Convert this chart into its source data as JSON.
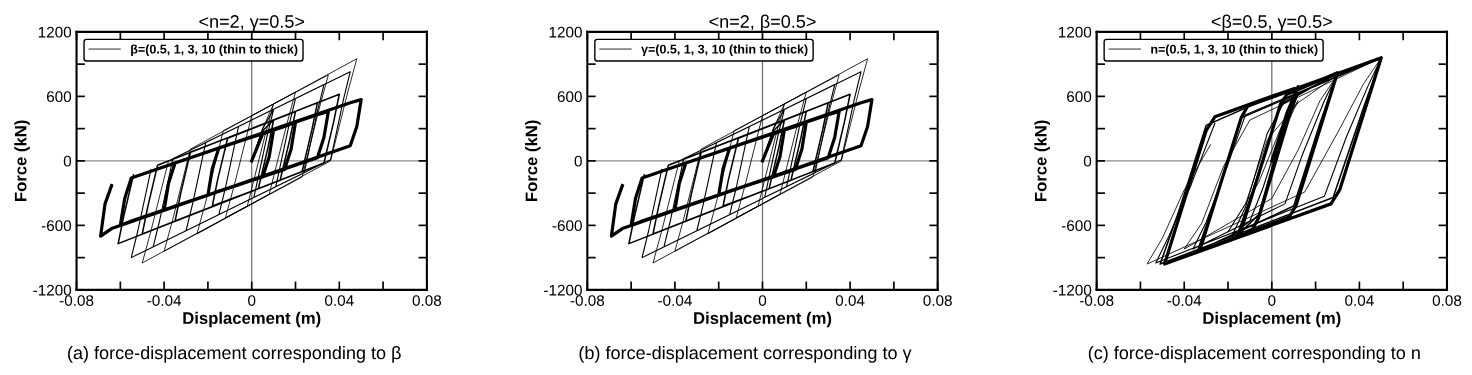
{
  "chart_data": [
    {
      "type": "line",
      "title": "<n=2, γ=0.5>",
      "xlabel": "Displacement (m)",
      "ylabel": "Force (kN)",
      "annotations": [
        "(a) force-displacement corresponding to β"
      ],
      "legend": "top left",
      "grid": false,
      "xlim": [
        -0.08,
        0.08
      ],
      "xticks": [
        -0.08,
        {
          "value": -0.06,
          "label": null
        },
        -0.04,
        {
          "value": -0.02,
          "label": null
        },
        0,
        {
          "value": 0.02,
          "label": null
        },
        0.04,
        {
          "value": 0.06,
          "label": null
        },
        0.08
      ],
      "ylim": [
        -1200,
        1200
      ],
      "yticks": [
        -1200,
        {
          "value": -900,
          "label": null
        },
        -600,
        {
          "value": -300,
          "label": null
        },
        0,
        {
          "value": 300,
          "label": null
        },
        600,
        {
          "value": 900,
          "label": null
        },
        1200
      ],
      "ref_lines": [
        {
          "axis": "x",
          "value": 0,
          "color": "#707070"
        },
        {
          "axis": "y",
          "value": 0,
          "color": "#8c8c8c"
        }
      ],
      "series": [
        {
          "name": "β=(0.5, 1, 3, 10 (thin to thick)",
          "color": "#000000",
          "x": [
            0,
            0.005,
            0.01,
            0.006,
            -0.002,
            -0.012,
            -0.008,
            0,
            0.02,
            0.016,
            0.008,
            -0.025,
            -0.021,
            -0.013,
            0.035,
            0.031,
            0.023,
            -0.04,
            -0.036,
            -0.028,
            0.048,
            0.044,
            0.036,
            -0.05,
            -0.046,
            -0.038
          ],
          "values": [
            0,
            300,
            530,
            230,
            -420,
            -530,
            -230,
            420,
            640,
            340,
            -310,
            -680,
            -380,
            280,
            800,
            500,
            -150,
            -840,
            -540,
            110,
            950,
            650,
            0,
            -950,
            -650,
            0
          ]
        },
        {
          "color": "#000000",
          "x": [
            0,
            0.005,
            0.01,
            0.007,
            0.001,
            -0.015,
            -0.012,
            -0.006,
            0.02,
            0.017,
            0.011,
            -0.03,
            -0.027,
            -0.021,
            0.033,
            0.03,
            0.024,
            -0.045,
            -0.042,
            -0.036,
            0.045,
            0.042,
            0.036,
            -0.055,
            -0.052,
            -0.046
          ],
          "values": [
            0,
            300,
            480,
            230,
            -340,
            -500,
            -250,
            320,
            580,
            330,
            -240,
            -650,
            -400,
            170,
            710,
            460,
            -110,
            -800,
            -550,
            20,
            830,
            580,
            10,
            -900,
            -650,
            -80
          ]
        },
        {
          "color": "#000000",
          "x": [
            0,
            0.005,
            0.01,
            0.0075,
            0.003,
            -0.018,
            -0.0155,
            -0.011,
            0.02,
            0.0175,
            0.013,
            -0.035,
            -0.0325,
            -0.028,
            0.03,
            0.0275,
            0.023,
            -0.05,
            -0.0475,
            -0.043,
            0.04,
            0.0375,
            0.033,
            -0.061,
            -0.0585,
            -0.054
          ],
          "values": [
            0,
            280,
            380,
            130,
            -260,
            -420,
            -170,
            210,
            460,
            210,
            -180,
            -560,
            -310,
            80,
            540,
            290,
            -100,
            -680,
            -430,
            -40,
            620,
            370,
            -20,
            -770,
            -520,
            -130
          ]
        },
        {
          "color": "#000000",
          "x": [
            0,
            0.005,
            0.01,
            0.008,
            0.005,
            -0.015,
            -0.02,
            -0.018,
            -0.015,
            0.015,
            0.02,
            0.018,
            0.015,
            -0.035,
            -0.04,
            -0.038,
            -0.035,
            0.03,
            0.035,
            0.033,
            0.03,
            -0.055,
            -0.06,
            -0.058,
            -0.055,
            0.045,
            0.05,
            0.048,
            0.045,
            -0.064,
            -0.069,
            -0.067,
            -0.064
          ],
          "values": [
            0,
            250,
            290,
            40,
            -150,
            -280,
            -320,
            -70,
            120,
            320,
            360,
            110,
            -80,
            -420,
            -460,
            -210,
            -20,
            430,
            460,
            220,
            30,
            -560,
            -600,
            -350,
            -160,
            540,
            570,
            320,
            140,
            -630,
            -700,
            -400,
            -230
          ]
        }
      ]
    },
    {
      "type": "line",
      "title": "<n=2, β=0.5>",
      "xlabel": "Displacement (m)",
      "ylabel": "Force (kN)",
      "annotations": [
        "(b) force-displacement corresponding to γ"
      ],
      "legend": "top left",
      "grid": false,
      "xlim": [
        -0.08,
        0.08
      ],
      "xticks": [
        -0.08,
        {
          "value": -0.06,
          "label": null
        },
        -0.04,
        {
          "value": -0.02,
          "label": null
        },
        0,
        {
          "value": 0.02,
          "label": null
        },
        0.04,
        {
          "value": 0.06,
          "label": null
        },
        0.08
      ],
      "ylim": [
        -1200,
        1200
      ],
      "yticks": [
        -1200,
        {
          "value": -900,
          "label": null
        },
        -600,
        {
          "value": -300,
          "label": null
        },
        0,
        {
          "value": 300,
          "label": null
        },
        600,
        {
          "value": 900,
          "label": null
        },
        1200
      ],
      "ref_lines": [
        {
          "axis": "x",
          "value": 0,
          "color": "#707070"
        },
        {
          "axis": "y",
          "value": 0,
          "color": "#8c8c8c"
        }
      ],
      "series": [
        {
          "name": "γ=(0.5, 1, 3, 10 (thin to thick)",
          "color": "#000000",
          "x": [
            0,
            0.005,
            0.01,
            0.006,
            -0.002,
            -0.012,
            -0.008,
            0,
            0.02,
            0.016,
            0.008,
            -0.025,
            -0.021,
            -0.013,
            0.035,
            0.031,
            0.023,
            -0.04,
            -0.036,
            -0.028,
            0.048,
            0.044,
            0.036,
            -0.05,
            -0.046,
            -0.038
          ],
          "values": [
            0,
            300,
            530,
            230,
            -420,
            -530,
            -230,
            420,
            640,
            340,
            -310,
            -680,
            -380,
            280,
            800,
            500,
            -150,
            -840,
            -540,
            110,
            950,
            650,
            0,
            -950,
            -650,
            0
          ]
        },
        {
          "color": "#000000",
          "x": [
            0,
            0.005,
            0.01,
            0.007,
            0.001,
            -0.015,
            -0.012,
            -0.006,
            0.02,
            0.017,
            0.011,
            -0.03,
            -0.027,
            -0.021,
            0.033,
            0.03,
            0.024,
            -0.045,
            -0.042,
            -0.036,
            0.045,
            0.042,
            0.036,
            -0.055,
            -0.052,
            -0.046
          ],
          "values": [
            0,
            300,
            480,
            230,
            -340,
            -500,
            -250,
            320,
            580,
            330,
            -240,
            -650,
            -400,
            170,
            710,
            460,
            -110,
            -800,
            -550,
            20,
            830,
            580,
            10,
            -900,
            -650,
            -80
          ]
        },
        {
          "color": "#000000",
          "x": [
            0,
            0.005,
            0.01,
            0.0075,
            0.003,
            -0.018,
            -0.0155,
            -0.011,
            0.02,
            0.0175,
            0.013,
            -0.035,
            -0.0325,
            -0.028,
            0.03,
            0.0275,
            0.023,
            -0.05,
            -0.0475,
            -0.043,
            0.04,
            0.0375,
            0.033,
            -0.061,
            -0.0585,
            -0.054
          ],
          "values": [
            0,
            280,
            380,
            130,
            -260,
            -420,
            -170,
            210,
            460,
            210,
            -180,
            -560,
            -310,
            80,
            540,
            290,
            -100,
            -680,
            -430,
            -40,
            620,
            370,
            -20,
            -770,
            -520,
            -130
          ]
        },
        {
          "color": "#000000",
          "x": [
            0,
            0.005,
            0.01,
            0.008,
            0.005,
            -0.015,
            -0.02,
            -0.018,
            -0.015,
            0.015,
            0.02,
            0.018,
            0.015,
            -0.035,
            -0.04,
            -0.038,
            -0.035,
            0.03,
            0.035,
            0.033,
            0.03,
            -0.055,
            -0.06,
            -0.058,
            -0.055,
            0.045,
            0.05,
            0.048,
            0.045,
            -0.064,
            -0.069,
            -0.067,
            -0.064
          ],
          "values": [
            0,
            250,
            290,
            40,
            -150,
            -280,
            -320,
            -70,
            120,
            320,
            360,
            110,
            -80,
            -420,
            -460,
            -210,
            -20,
            430,
            460,
            220,
            30,
            -560,
            -600,
            -350,
            -160,
            540,
            570,
            320,
            140,
            -630,
            -700,
            -400,
            -230
          ]
        }
      ]
    },
    {
      "type": "line",
      "title": "<β=0.5, γ=0.5>",
      "xlabel": "Displacement (m)",
      "ylabel": "Force (kN)",
      "annotations": [
        "(c) force-displacement corresponding to n"
      ],
      "legend": "top left",
      "grid": false,
      "xlim": [
        -0.08,
        0.08
      ],
      "xticks": [
        -0.08,
        {
          "value": -0.06,
          "label": null
        },
        -0.04,
        {
          "value": -0.02,
          "label": null
        },
        0,
        {
          "value": 0.02,
          "label": null
        },
        0.04,
        {
          "value": 0.06,
          "label": null
        },
        0.08
      ],
      "ylim": [
        -1200,
        1200
      ],
      "yticks": [
        -1200,
        {
          "value": -900,
          "label": null
        },
        -600,
        {
          "value": -300,
          "label": null
        },
        0,
        {
          "value": 300,
          "label": null
        },
        600,
        {
          "value": 900,
          "label": null
        },
        1200
      ],
      "ref_lines": [
        {
          "axis": "x",
          "value": 0,
          "color": "#707070"
        },
        {
          "axis": "y",
          "value": 0,
          "color": "#8c8c8c"
        }
      ],
      "series": [
        {
          "name": "n=(0.5, 1, 3, 10 (thin to thick)",
          "color": "#000000",
          "x": [
            0,
            0.006,
            0.012,
            0.004,
            -0.006,
            -0.02,
            -0.012,
            -0.002,
            0.012,
            0.03,
            0.022,
            0.012,
            0.0,
            -0.04,
            -0.032,
            -0.022,
            -0.01,
            0.05,
            0.042,
            0.03,
            0.015,
            -0.057,
            -0.05,
            -0.04,
            -0.028
          ],
          "values": [
            0,
            300,
            560,
            300,
            -200,
            -660,
            -400,
            200,
            540,
            800,
            560,
            100,
            -350,
            -820,
            -580,
            -50,
            380,
            960,
            720,
            260,
            -290,
            -960,
            -720,
            -270,
            150
          ]
        },
        {
          "color": "#000000",
          "x": [
            0,
            0.008,
            0.012,
            0.006,
            -0.004,
            -0.01,
            -0.018,
            -0.012,
            -0.002,
            0.006,
            0.03,
            0.024,
            0.014,
            0.006,
            -0.036,
            -0.03,
            -0.02,
            -0.012,
            0.05,
            0.044,
            0.034,
            0.024,
            -0.053,
            -0.047,
            -0.037,
            -0.026
          ],
          "values": [
            0,
            400,
            620,
            380,
            -250,
            -560,
            -690,
            -430,
            260,
            560,
            810,
            560,
            60,
            -400,
            -820,
            -570,
            -30,
            430,
            960,
            700,
            220,
            -330,
            -950,
            -700,
            -230,
            350
          ]
        },
        {
          "color": "#000000",
          "x": [
            0,
            0.008,
            0.012,
            0.004,
            -0.006,
            -0.016,
            -0.008,
            0.004,
            0.03,
            0.022,
            0.01,
            -0.034,
            -0.026,
            -0.014,
            0.05,
            0.042,
            0.028,
            -0.051,
            -0.043,
            -0.03,
            0.0
          ],
          "values": [
            0,
            460,
            680,
            220,
            -500,
            -700,
            -240,
            520,
            820,
            350,
            -420,
            -840,
            -370,
            400,
            960,
            500,
            -340,
            -960,
            -500,
            330,
            600
          ]
        },
        {
          "color": "#000000",
          "x": [
            0,
            0.007,
            0.012,
            -0.006,
            -0.009,
            -0.015,
            0.004,
            0.007,
            0.03,
            0.011,
            0.008,
            -0.033,
            -0.014,
            -0.011,
            0.05,
            0.031,
            0.027,
            -0.049,
            -0.03,
            -0.026,
            0.0,
            0.01
          ],
          "values": [
            0,
            450,
            690,
            -530,
            -640,
            -710,
            530,
            620,
            820,
            -420,
            -520,
            -840,
            400,
            510,
            960,
            -270,
            -400,
            -960,
            280,
            410,
            600,
            670
          ]
        }
      ]
    }
  ]
}
